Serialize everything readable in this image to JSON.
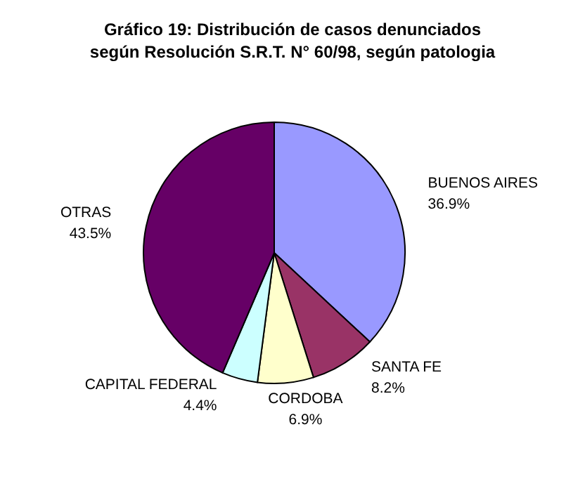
{
  "chart_data": {
    "type": "pie",
    "title": "Gráfico 19: Distribución de casos denunciados\nsegún Resolución S.R.T. N° 60/98, según patologia",
    "categories": [
      "BUENOS AIRES",
      "SANTA FE",
      "CORDOBA",
      "CAPITAL FEDERAL",
      "OTRAS"
    ],
    "values": [
      36.9,
      8.2,
      6.9,
      4.4,
      43.5
    ],
    "value_labels": [
      "36.9%",
      "8.2%",
      "6.9%",
      "4.4%",
      "43.5%"
    ],
    "colors": [
      "#9999ff",
      "#993366",
      "#ffffcc",
      "#ccffff",
      "#660066"
    ]
  }
}
